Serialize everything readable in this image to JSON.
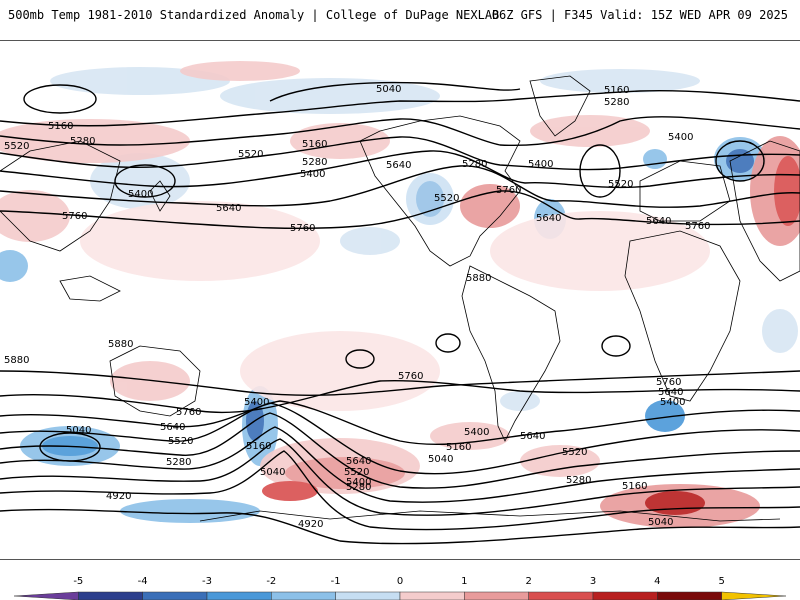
{
  "header": {
    "title_left": "500mb Temp 1981-2010 Standardized Anomaly | College of DuPage NEXLAB",
    "title_right": "06Z GFS | F345 Valid: 15Z WED APR 09 2025"
  },
  "contour_labels": [
    "5040",
    "5160",
    "5280",
    "5400",
    "5520",
    "5640",
    "5760",
    "5880",
    "4920"
  ],
  "legend": {
    "ticks": [
      "-5",
      "-4",
      "-3",
      "-2",
      "-1",
      "0",
      "1",
      "2",
      "3",
      "4",
      "5"
    ],
    "colors": [
      "#6a3d9a",
      "#2c3e8c",
      "#3a6fb8",
      "#4a98d8",
      "#8cc0e8",
      "#c6def2",
      "#f4cccc",
      "#e89b9b",
      "#d94f4f",
      "#b81f1f",
      "#7a0a0a",
      "#f2c200"
    ]
  }
}
